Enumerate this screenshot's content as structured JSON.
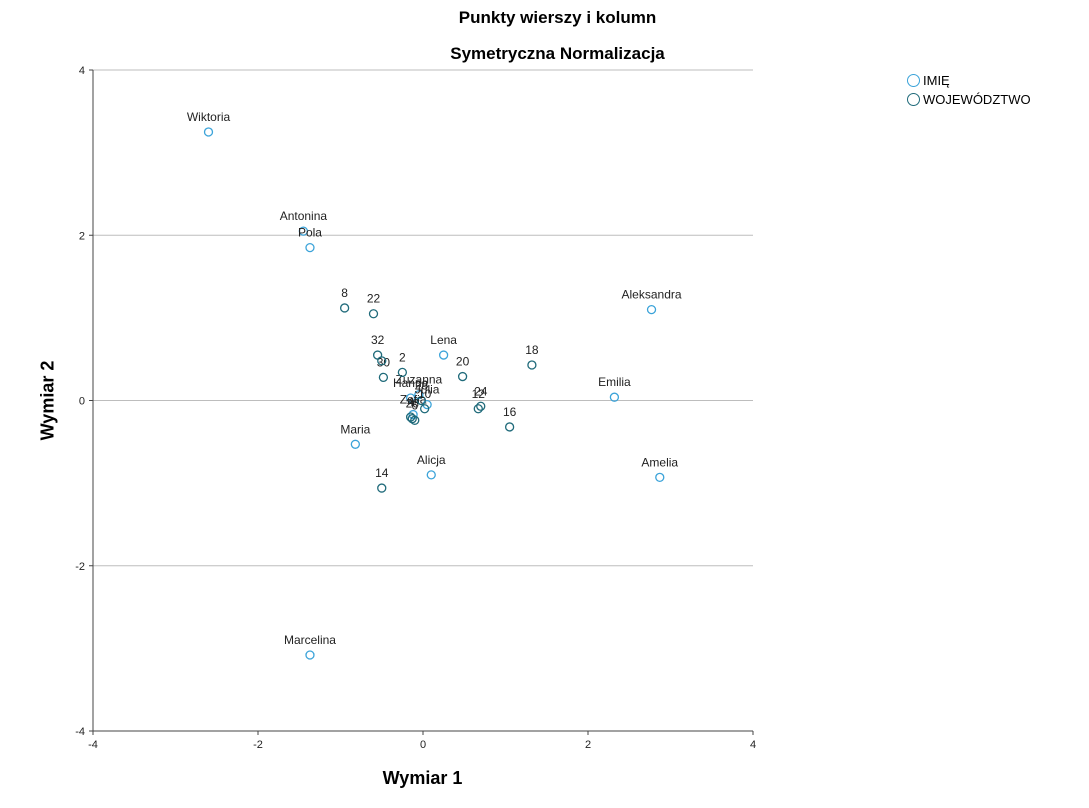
{
  "chart_data": {
    "type": "scatter",
    "title": "Punkty wierszy i kolumn",
    "subtitle": "Symetryczna Normalizacja",
    "xlabel": "Wymiar 1",
    "ylabel": "Wymiar 2",
    "xlim": [
      -4,
      4
    ],
    "ylim": [
      -4,
      4
    ],
    "xticks": [
      -4,
      -2,
      0,
      2,
      4
    ],
    "yticks": [
      -4,
      -2,
      0,
      2,
      4
    ],
    "grid": "horizontal",
    "legend_position": "top-right",
    "series": [
      {
        "name": "IMIĘ",
        "color": "#3ba3d9",
        "points": [
          {
            "label": "Wiktoria",
            "x": -2.6,
            "y": 3.25
          },
          {
            "label": "Antonina",
            "x": -1.45,
            "y": 2.05
          },
          {
            "label": "Pola",
            "x": -1.37,
            "y": 1.85
          },
          {
            "label": "Aleksandra",
            "x": 2.77,
            "y": 1.1
          },
          {
            "label": "Lena",
            "x": 0.25,
            "y": 0.55
          },
          {
            "label": "Hanna",
            "x": -0.15,
            "y": 0.03
          },
          {
            "label": "Zuzanna",
            "x": -0.05,
            "y": 0.07
          },
          {
            "label": "Emilia",
            "x": 2.32,
            "y": 0.04
          },
          {
            "label": "Zofia",
            "x": -0.12,
            "y": -0.17
          },
          {
            "label": "Julia",
            "x": 0.05,
            "y": -0.05
          },
          {
            "label": "Maria",
            "x": -0.82,
            "y": -0.53
          },
          {
            "label": "Alicja",
            "x": 0.1,
            "y": -0.9
          },
          {
            "label": "Amelia",
            "x": 2.87,
            "y": -0.93
          },
          {
            "label": "Marcelina",
            "x": -1.37,
            "y": -3.08
          }
        ]
      },
      {
        "name": "WOJEWÓDZTWO",
        "color": "#1f6a7a",
        "points": [
          {
            "label": "8",
            "x": -0.95,
            "y": 1.12
          },
          {
            "label": "22",
            "x": -0.6,
            "y": 1.05
          },
          {
            "label": "32",
            "x": -0.55,
            "y": 0.55
          },
          {
            "label": "2",
            "x": -0.25,
            "y": 0.34
          },
          {
            "label": "30",
            "x": -0.48,
            "y": 0.28
          },
          {
            "label": "20",
            "x": 0.48,
            "y": 0.29
          },
          {
            "label": "18",
            "x": 1.32,
            "y": 0.43
          },
          {
            "label": "28",
            "x": -0.02,
            "y": 0.0
          },
          {
            "label": "24",
            "x": 0.7,
            "y": -0.07
          },
          {
            "label": "4",
            "x": -0.15,
            "y": -0.2
          },
          {
            "label": "10",
            "x": 0.02,
            "y": -0.1
          },
          {
            "label": "12",
            "x": 0.67,
            "y": -0.1
          },
          {
            "label": "26",
            "x": -0.13,
            "y": -0.22
          },
          {
            "label": "6",
            "x": -0.1,
            "y": -0.24
          },
          {
            "label": "16",
            "x": 1.05,
            "y": -0.32
          },
          {
            "label": "14",
            "x": -0.5,
            "y": -1.06
          },
          {
            "label": "",
            "x": -0.5,
            "y": 0.48
          }
        ]
      }
    ]
  }
}
